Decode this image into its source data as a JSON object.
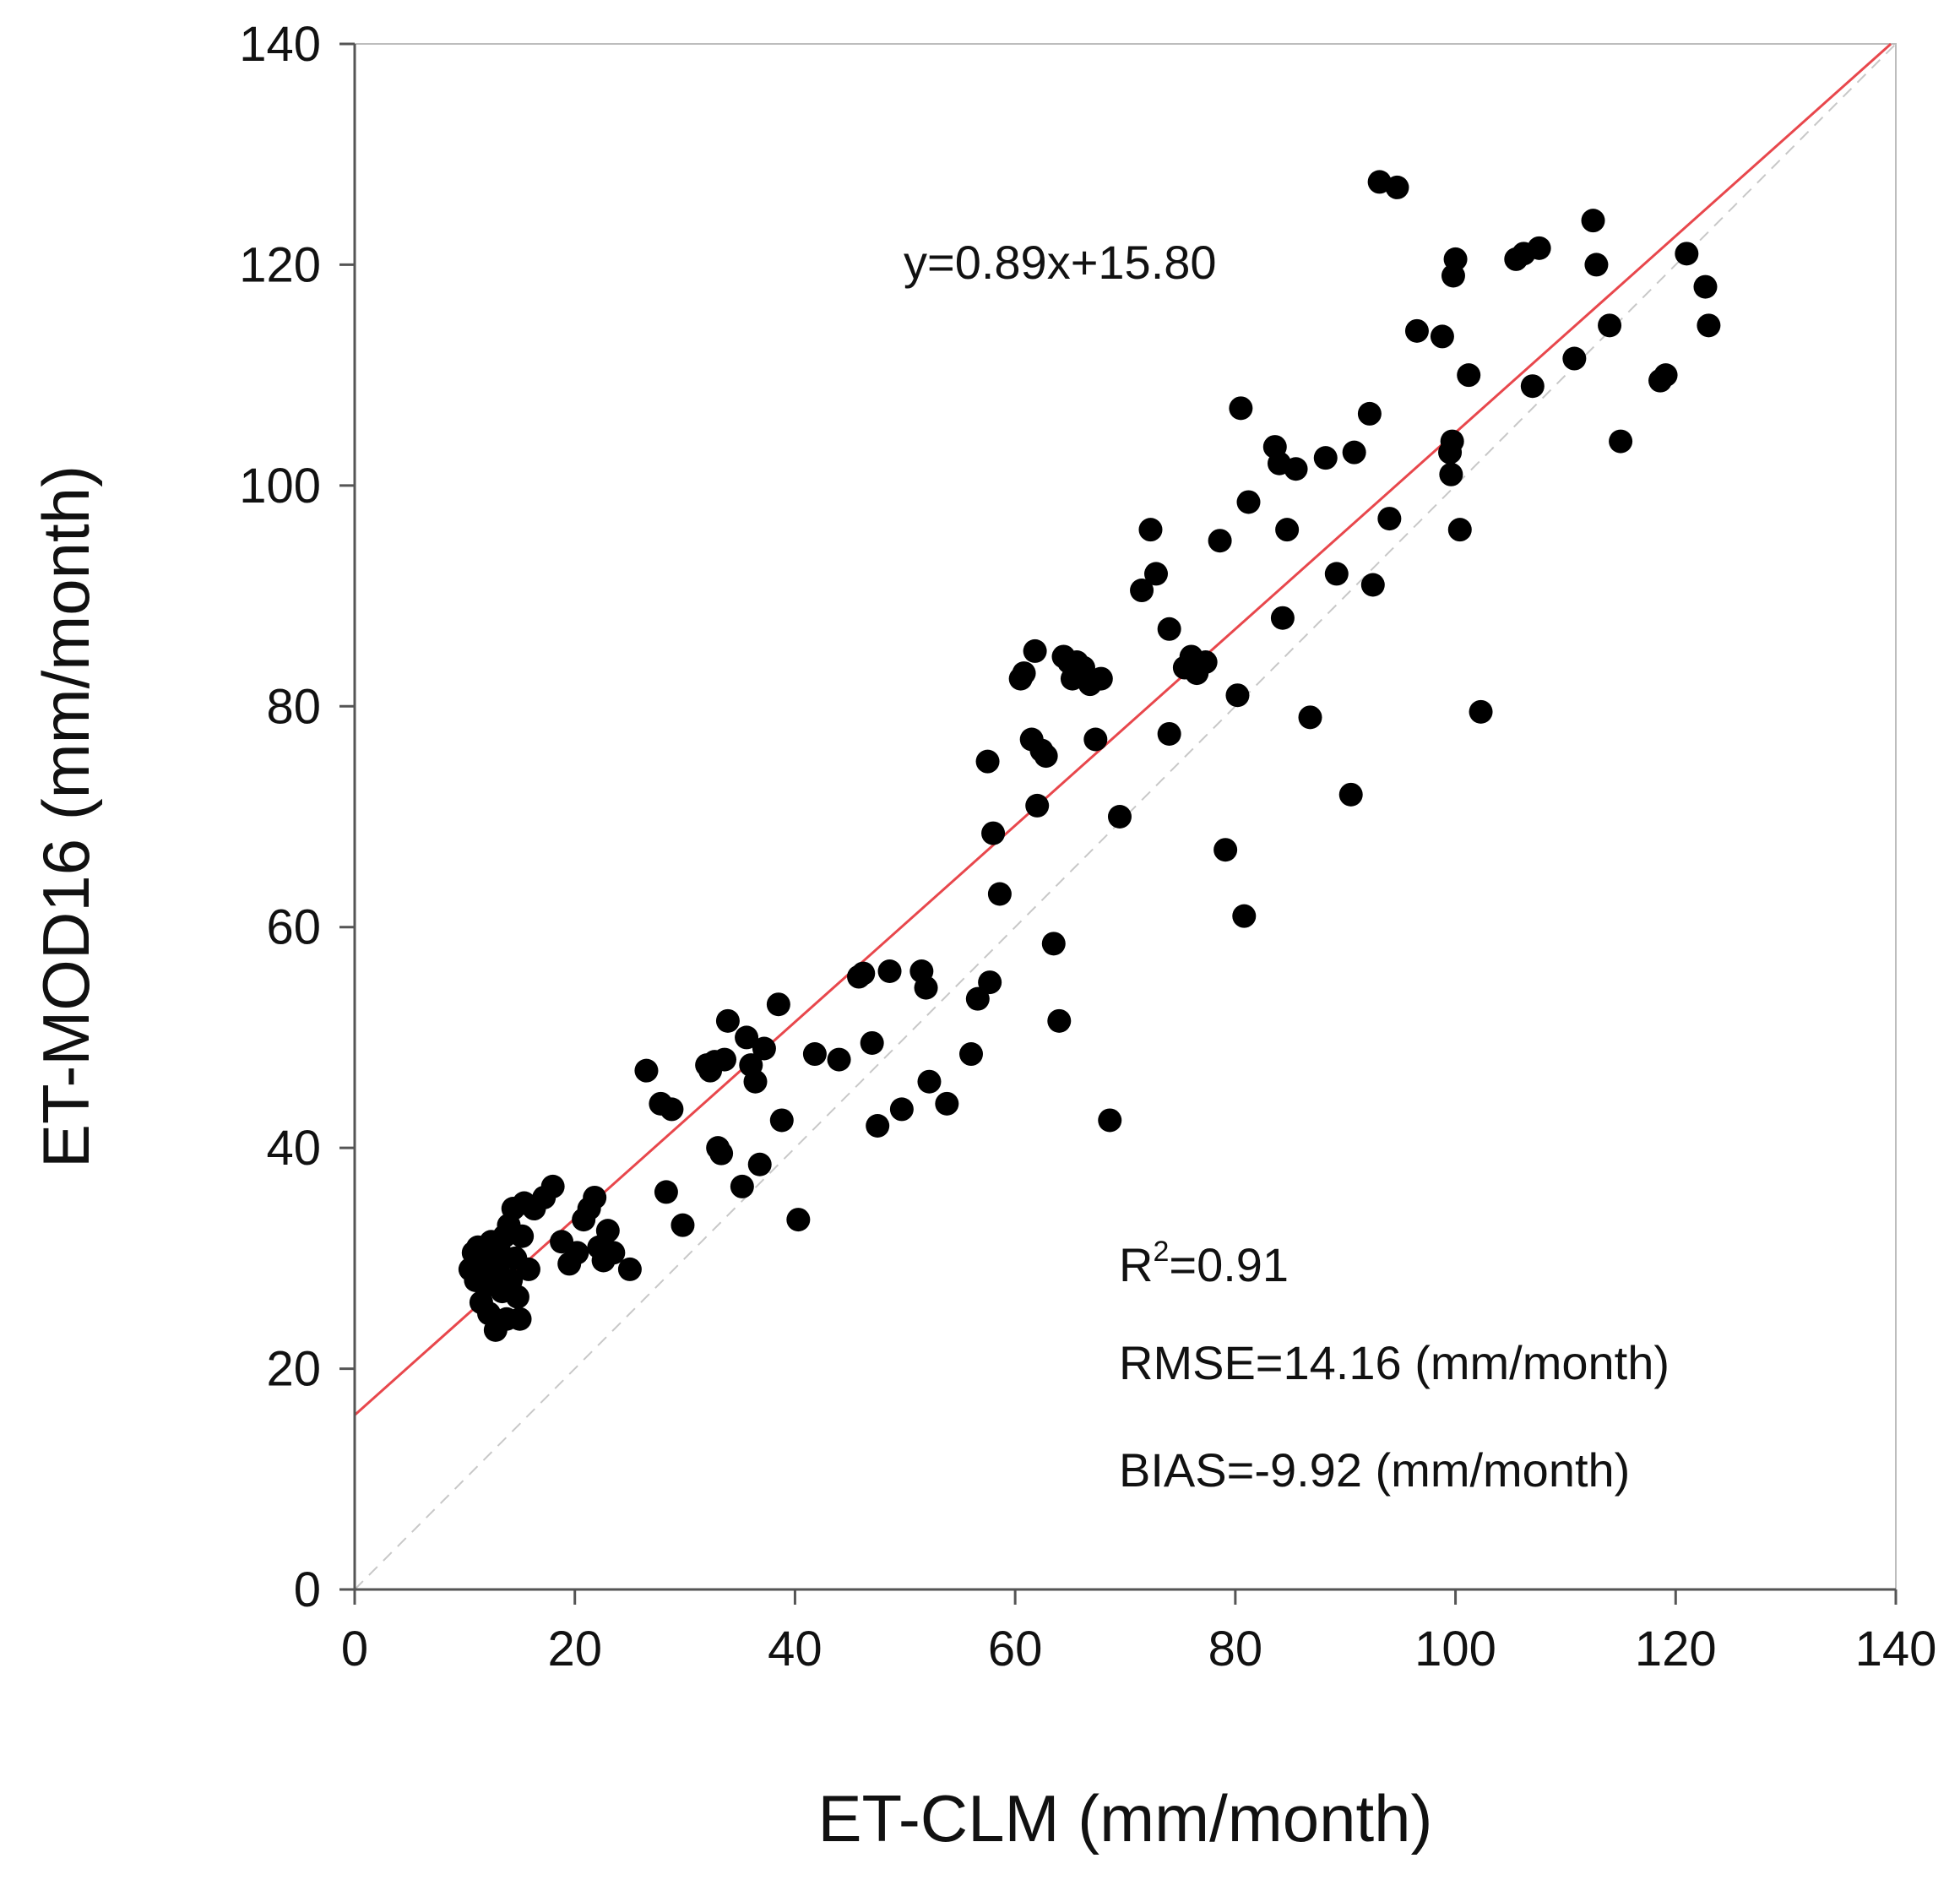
{
  "chart_data": {
    "type": "scatter",
    "title": "",
    "xlabel": "ET-CLM (mm/month)",
    "ylabel": "ET-MOD16 (mm/month)",
    "xlim": [
      0,
      140
    ],
    "ylim": [
      0,
      140
    ],
    "xticks": [
      0,
      20,
      40,
      60,
      80,
      100,
      120,
      140
    ],
    "yticks": [
      0,
      20,
      40,
      60,
      80,
      100,
      120,
      140
    ],
    "grid": false,
    "colors": {
      "points": "#000000",
      "regression": "#e8474c",
      "one_to_one": "#c8c8c8",
      "axes": "#555555"
    },
    "regression": {
      "slope": 0.89,
      "intercept": 15.8,
      "label": "y=0.89x+15.80"
    },
    "one_to_one_line": {
      "slope": 1,
      "intercept": 0
    },
    "stats": {
      "r2_prefix": "R",
      "r2_sup": "2",
      "r2_value": "=0.91",
      "rmse": "RMSE=14.16 (mm/month)",
      "bias": "BIAS=-9.92 (mm/month)"
    },
    "points": [
      [
        10.5,
        29.0
      ],
      [
        10.8,
        30.5
      ],
      [
        11.0,
        28.0
      ],
      [
        11.2,
        31.0
      ],
      [
        11.5,
        26.0
      ],
      [
        11.7,
        29.5
      ],
      [
        11.9,
        27.5
      ],
      [
        12.0,
        30.0
      ],
      [
        12.2,
        25.0
      ],
      [
        12.4,
        31.5
      ],
      [
        12.6,
        28.5
      ],
      [
        12.8,
        23.5
      ],
      [
        13.0,
        29.0
      ],
      [
        13.2,
        30.5
      ],
      [
        13.4,
        27.0
      ],
      [
        13.6,
        32.0
      ],
      [
        13.8,
        24.5
      ],
      [
        14.0,
        33.0
      ],
      [
        14.2,
        28.0
      ],
      [
        14.4,
        34.5
      ],
      [
        14.6,
        30.0
      ],
      [
        14.8,
        26.5
      ],
      [
        15.0,
        24.5
      ],
      [
        15.2,
        32.0
      ],
      [
        15.4,
        35.0
      ],
      [
        15.8,
        29.0
      ],
      [
        16.3,
        34.5
      ],
      [
        17.2,
        35.5
      ],
      [
        18.0,
        36.5
      ],
      [
        18.8,
        31.5
      ],
      [
        19.5,
        29.5
      ],
      [
        20.2,
        30.5
      ],
      [
        20.8,
        33.5
      ],
      [
        21.3,
        34.5
      ],
      [
        21.8,
        35.5
      ],
      [
        22.2,
        31.0
      ],
      [
        22.6,
        29.8
      ],
      [
        23.0,
        32.5
      ],
      [
        23.5,
        30.5
      ],
      [
        25.0,
        29.0
      ],
      [
        26.5,
        47.0
      ],
      [
        27.8,
        44.0
      ],
      [
        28.3,
        36.0
      ],
      [
        28.8,
        43.5
      ],
      [
        29.8,
        33.0
      ],
      [
        32.0,
        47.5
      ],
      [
        32.3,
        47.0
      ],
      [
        32.7,
        47.8
      ],
      [
        33.0,
        40.0
      ],
      [
        33.3,
        39.5
      ],
      [
        33.6,
        48.0
      ],
      [
        33.9,
        51.5
      ],
      [
        35.2,
        36.5
      ],
      [
        35.6,
        50.0
      ],
      [
        36.0,
        47.5
      ],
      [
        36.4,
        46.0
      ],
      [
        36.8,
        38.5
      ],
      [
        37.2,
        49.0
      ],
      [
        38.5,
        53.0
      ],
      [
        38.8,
        42.5
      ],
      [
        40.3,
        33.5
      ],
      [
        41.8,
        48.5
      ],
      [
        44.0,
        48.0
      ],
      [
        45.8,
        55.5
      ],
      [
        46.2,
        55.8
      ],
      [
        47.0,
        49.5
      ],
      [
        47.5,
        42.0
      ],
      [
        48.6,
        56.0
      ],
      [
        49.7,
        43.5
      ],
      [
        51.5,
        56.0
      ],
      [
        51.9,
        54.5
      ],
      [
        52.2,
        46.0
      ],
      [
        53.8,
        44.0
      ],
      [
        56.0,
        48.5
      ],
      [
        56.6,
        53.5
      ],
      [
        57.7,
        55.0
      ],
      [
        57.5,
        75.0
      ],
      [
        58.0,
        68.5
      ],
      [
        58.6,
        63.0
      ],
      [
        60.5,
        82.5
      ],
      [
        60.8,
        83.0
      ],
      [
        61.5,
        77.0
      ],
      [
        61.8,
        85.0
      ],
      [
        62.0,
        71.0
      ],
      [
        62.4,
        76.0
      ],
      [
        62.8,
        75.5
      ],
      [
        63.5,
        58.5
      ],
      [
        64.0,
        51.5
      ],
      [
        64.4,
        84.5
      ],
      [
        64.9,
        84.0
      ],
      [
        65.2,
        82.5
      ],
      [
        65.6,
        84.0
      ],
      [
        66.2,
        83.5
      ],
      [
        66.8,
        82.0
      ],
      [
        67.3,
        77.0
      ],
      [
        67.8,
        82.5
      ],
      [
        68.6,
        42.5
      ],
      [
        69.5,
        70.0
      ],
      [
        71.5,
        90.5
      ],
      [
        72.3,
        96.0
      ],
      [
        72.8,
        92.0
      ],
      [
        74.0,
        87.0
      ],
      [
        74.0,
        77.5
      ],
      [
        75.4,
        83.5
      ],
      [
        76.0,
        84.5
      ],
      [
        76.5,
        83.0
      ],
      [
        77.3,
        84.0
      ],
      [
        78.6,
        95.0
      ],
      [
        79.1,
        67.0
      ],
      [
        80.2,
        81.0
      ],
      [
        80.5,
        107.0
      ],
      [
        80.8,
        61.0
      ],
      [
        81.2,
        98.5
      ],
      [
        83.6,
        103.5
      ],
      [
        84.0,
        102.0
      ],
      [
        84.3,
        88.0
      ],
      [
        84.7,
        96.0
      ],
      [
        85.5,
        101.5
      ],
      [
        86.8,
        79.0
      ],
      [
        88.2,
        102.5
      ],
      [
        89.2,
        92.0
      ],
      [
        90.5,
        72.0
      ],
      [
        90.8,
        103.0
      ],
      [
        92.2,
        106.5
      ],
      [
        92.5,
        91.0
      ],
      [
        93.1,
        127.5
      ],
      [
        94.0,
        97.0
      ],
      [
        94.7,
        127.0
      ],
      [
        96.5,
        114.0
      ],
      [
        98.8,
        113.5
      ],
      [
        99.5,
        103.0
      ],
      [
        99.6,
        101.0
      ],
      [
        99.7,
        104.0
      ],
      [
        99.8,
        119.0
      ],
      [
        100.0,
        120.5
      ],
      [
        100.4,
        96.0
      ],
      [
        101.2,
        110.0
      ],
      [
        102.3,
        79.5
      ],
      [
        105.5,
        120.5
      ],
      [
        106.2,
        121.0
      ],
      [
        107.0,
        109.0
      ],
      [
        107.6,
        121.5
      ],
      [
        110.8,
        111.5
      ],
      [
        112.5,
        124.0
      ],
      [
        112.8,
        120.0
      ],
      [
        114.0,
        114.5
      ],
      [
        115.0,
        104.0
      ],
      [
        118.6,
        109.5
      ],
      [
        119.1,
        110.0
      ],
      [
        121.0,
        121.0
      ],
      [
        122.7,
        118.0
      ],
      [
        123.0,
        114.5
      ]
    ]
  }
}
